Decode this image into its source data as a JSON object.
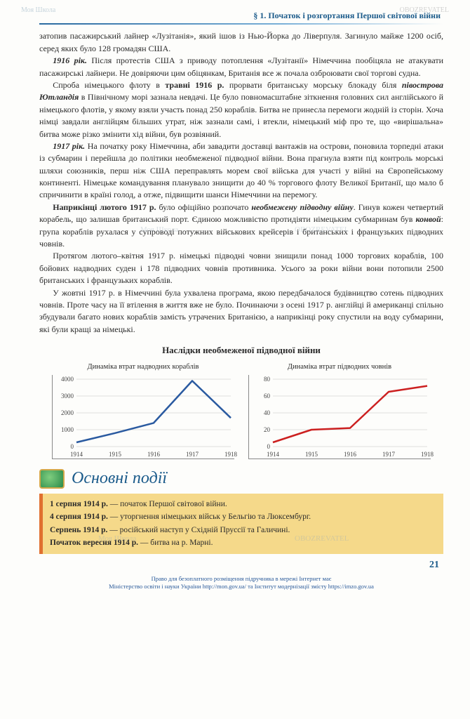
{
  "watermark_top_left": "Моя Школа",
  "watermark_top_right": "OBOZREVATEL",
  "section_header": "§ 1. Початок і розгортання Першої світової війни",
  "paragraphs": {
    "p1": "затопив пасажирський лайнер «Лузітанія», який ішов із Нью-Йорка до Ліверпуля. Загинуло майже 1200 осіб, серед яких було 128 громадян США.",
    "p2a": "1916 рік.",
    "p2b": " Після протестів США з приводу потоплення «Лузітанії» Німеччина пообіцяла не атакувати пасажирські лайнери. Не довіряючи цим обіцянкам, Британія все ж почала озброювати свої торгові судна.",
    "p3a": "Спроба німецького флоту в ",
    "p3b": "травні 1916 р.",
    "p3c": " прорвати британську морську блокаду біля ",
    "p3d": "півострова Ютландія",
    "p3e": " в Північному морі зазнала невдачі. Це було повномасштабне зіткнення головних сил англійського й німецького флотів, у якому взяли участь понад 250 кораблів. Битва не принесла перемоги жодній із сторін. Хоча німці завдали англійцям більших утрат, ніж зазнали самі, і втекли, німецький міф про те, що «вирішальна» битва може різко змінити хід війни, був розвіяний.",
    "p4a": "1917 рік.",
    "p4b": " На початку року Німеччина, аби завадити доставці вантажів на острови, поновила торпедні атаки із субмарин і перейшла до політики необмеженої підводної війни. Вона прагнула взяти під контроль морські шляхи союзників, перш ніж США переправлять морем свої війська для участі у війні на Європейському континенті. Німецьке командування планувало знищити до 40 % торгового флоту Великої Британії, що мало б спричинити в країні голод, а отже, підвищити шанси Німеччини на перемогу.",
    "p5a": "Наприкінці лютого 1917 р.",
    "p5b": " було офіційно розпочато ",
    "p5c": "необмежену підводну війну",
    "p5d": ". Гинув кожен четвертий корабель, що залишав британський порт. Єдиною можливістю протидіяти німецьким субмаринам був ",
    "p5e": "конвой",
    "p5f": ": група кораблів рухалася у супроводі потужних військових крейсерів і британських і французьких підводних човнів.",
    "p6": "Протягом лютого–квітня 1917 р. німецькі підводні човни знищили понад 1000 торгових кораблів, 100 бойових надводних суден і 178 підводних човнів противника. Усього за роки війни вони потопили 2500 британських і французьких кораблів.",
    "p7": "У жовтні 1917 р. в Німеччині була ухвалена програма, якою передбачалося будівництво сотень підводних човнів. Проте часу на її втілення в життя вже не було. Починаючи з осені 1917 р. англійці й американці спільно збудували багато нових кораблів замість утрачених Британією, а наприкінці року спустили на воду субмарини, які були кращі за німецькі."
  },
  "charts_section_title": "Наслідки необмеженої підводної війни",
  "chart1": {
    "type": "line",
    "title": "Динаміка втрат надводних кораблів",
    "years": [
      "1914",
      "1915",
      "1916",
      "1917",
      "1918"
    ],
    "values": [
      250,
      800,
      1400,
      3900,
      1700
    ],
    "ylim": [
      0,
      4000
    ],
    "yticks": [
      0,
      1000,
      2000,
      3000,
      4000
    ],
    "line_color": "#2a5aa0",
    "line_width": 2.5,
    "grid_color": "#d5d5d5",
    "font_size": 9
  },
  "chart2": {
    "type": "line",
    "title": "Динаміка втрат підводних човнів",
    "years": [
      "1914",
      "1915",
      "1916",
      "1917",
      "1918"
    ],
    "values": [
      5,
      20,
      22,
      65,
      72
    ],
    "ylim": [
      0,
      80
    ],
    "yticks": [
      0,
      20,
      40,
      60,
      80
    ],
    "line_color": "#cc2020",
    "line_width": 2.5,
    "grid_color": "#d5d5d5",
    "font_size": 9
  },
  "events_title": "Основні події",
  "events": [
    {
      "date": "1 серпня 1914 р.",
      "text": " — початок Першої світової війни."
    },
    {
      "date": "4 серпня 1914 р.",
      "text": " — уторгнення німецьких військ у Бельгію та Люксембург."
    },
    {
      "date": "Серпень 1914 р.",
      "text": " — російський наступ у Східній Пруссії та Галичині."
    },
    {
      "date": "Початок вересня 1914 р.",
      "text": " — битва на р. Марні."
    }
  ],
  "page_number": "21",
  "footer1": "Право для безоплатного розміщення підручника в мережі Інтернет має",
  "footer2": "Міністерство освіти і науки України http://mon.gov.ua/ та Інститут модернізації змісту https://imzo.gov.ua"
}
